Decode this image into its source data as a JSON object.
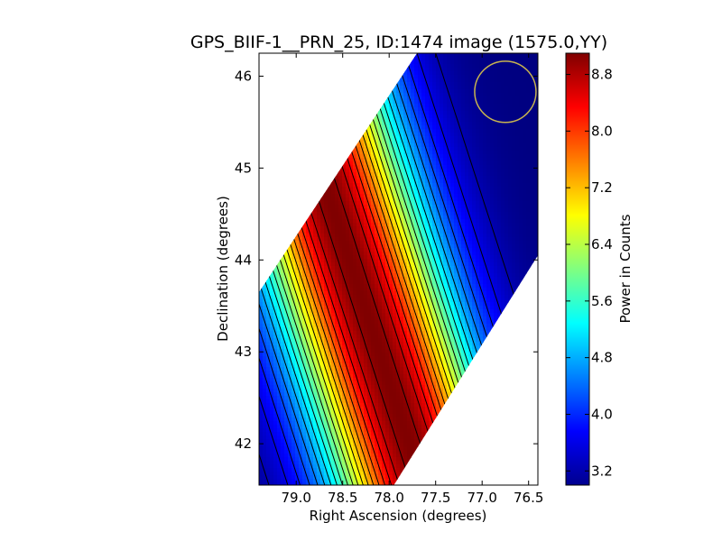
{
  "chart_data": {
    "type": "heatmap",
    "title": "GPS_BIIF-1__PRN_25, ID:1474 image (1575.0,YY)",
    "xlabel": "Right Ascension (degrees)",
    "ylabel": "Declination (degrees)",
    "colorbar_label": "Power in Counts",
    "xlim": [
      79.4,
      76.4
    ],
    "ylim": [
      41.55,
      46.25
    ],
    "x_ticks": [
      79.0,
      78.5,
      78.0,
      77.5,
      77.0,
      76.5
    ],
    "x_tick_labels": [
      "79.0",
      "78.5",
      "78.0",
      "77.5",
      "77.0",
      "76.5"
    ],
    "y_ticks": [
      42,
      43,
      44,
      45,
      46
    ],
    "y_tick_labels": [
      "42",
      "43",
      "44",
      "45",
      "46"
    ],
    "colorbar_range": [
      3.0,
      9.1
    ],
    "colorbar_ticks": [
      3.2,
      4.0,
      4.8,
      5.6,
      6.4,
      7.2,
      8.0,
      8.8
    ],
    "colorbar_tick_labels": [
      "3.2",
      "4.0",
      "4.8",
      "5.6",
      "6.4",
      "7.2",
      "8.0",
      "8.8"
    ],
    "colormap": "jet",
    "contour_lines": true,
    "contour_color": "#000000",
    "field_peak_value": 9.1,
    "field_min_value": 3.0,
    "coverage_region_corners": [
      {
        "ra": 79.4,
        "dec": 41.55
      },
      {
        "ra": 77.95,
        "dec": 41.55
      },
      {
        "ra": 76.4,
        "dec": 44.05
      },
      {
        "ra": 76.4,
        "dec": 46.25
      },
      {
        "ra": 77.7,
        "dec": 46.25
      },
      {
        "ra": 79.4,
        "dec": 43.65
      }
    ],
    "marker": {
      "shape": "circle",
      "ra": 76.75,
      "dec": 45.83,
      "radius_deg": 0.33,
      "color": "#c8b450"
    }
  }
}
